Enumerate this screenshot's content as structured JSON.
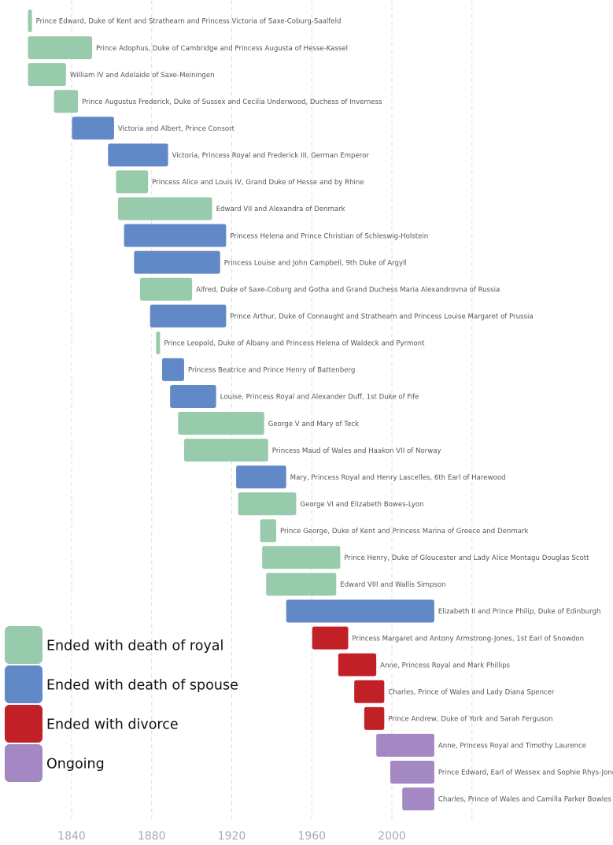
{
  "chart_data": {
    "type": "timeline",
    "title": "",
    "xlabel": "",
    "ylabel": "",
    "x_ticks": [
      1840,
      1880,
      1920,
      1960,
      2000
    ],
    "xlim": [
      1818,
      2040
    ],
    "grid": "vertical dashed",
    "legend_position": "left-bottom",
    "colors": {
      "death_royal": "#98CBAC",
      "death_spouse": "#6189C8",
      "divorce": "#C22027",
      "ongoing": "#A388C3"
    },
    "legend": [
      {
        "key": "death_royal",
        "label": "Ended with death of royal"
      },
      {
        "key": "death_spouse",
        "label": "Ended with death of spouse"
      },
      {
        "key": "divorce",
        "label": "Ended with divorce"
      },
      {
        "key": "ongoing",
        "label": "Ongoing"
      }
    ],
    "marriages": [
      {
        "label": "Prince Edward, Duke of Kent and Strathearn and Princess Victoria of Saxe-Coburg-Saalfeld",
        "start": 1818,
        "end": 1820,
        "outcome": "death_royal"
      },
      {
        "label": "Prince Adophus, Duke of Cambridge and Princess Augusta of Hesse-Kassel",
        "start": 1818,
        "end": 1850,
        "outcome": "death_royal"
      },
      {
        "label": "William IV and Adelaide of Saxe-Meiningen",
        "start": 1818,
        "end": 1837,
        "outcome": "death_royal"
      },
      {
        "label": "Prince Augustus Frederick, Duke of Sussex and Cecilia Underwood, Duchess of Inverness",
        "start": 1831,
        "end": 1843,
        "outcome": "death_royal"
      },
      {
        "label": "Victoria and Albert, Prince Consort",
        "start": 1840,
        "end": 1861,
        "outcome": "death_spouse"
      },
      {
        "label": "Victoria, Princess Royal and Frederick III, German Emperor",
        "start": 1858,
        "end": 1888,
        "outcome": "death_spouse"
      },
      {
        "label": "Princess Alice and Louis IV, Grand Duke of Hesse and by Rhine",
        "start": 1862,
        "end": 1878,
        "outcome": "death_royal"
      },
      {
        "label": "Edward VII and Alexandra of Denmark",
        "start": 1863,
        "end": 1910,
        "outcome": "death_royal"
      },
      {
        "label": "Princess Helena and Prince Christian of Schleswig-Holstein",
        "start": 1866,
        "end": 1917,
        "outcome": "death_spouse"
      },
      {
        "label": "Princess Louise and John Campbell, 9th Duke of Argyll",
        "start": 1871,
        "end": 1914,
        "outcome": "death_spouse"
      },
      {
        "label": "Alfred, Duke of Saxe-Coburg and Gotha and Grand Duchess Maria Alexandrovna of Russia",
        "start": 1874,
        "end": 1900,
        "outcome": "death_royal"
      },
      {
        "label": "Prince Arthur, Duke of Connaught and Strathearn and Princess Louise Margaret of Prussia",
        "start": 1879,
        "end": 1917,
        "outcome": "death_spouse"
      },
      {
        "label": "Prince Leopold, Duke of Albany and Princess Helena of Waldeck and Pyrmont",
        "start": 1882,
        "end": 1884,
        "outcome": "death_royal"
      },
      {
        "label": "Princess Beatrice and Prince Henry of Battenberg",
        "start": 1885,
        "end": 1896,
        "outcome": "death_spouse"
      },
      {
        "label": "Louise, Princess Royal and Alexander Duff, 1st Duke of Fife",
        "start": 1889,
        "end": 1912,
        "outcome": "death_spouse"
      },
      {
        "label": "George V and Mary of Teck",
        "start": 1893,
        "end": 1936,
        "outcome": "death_royal"
      },
      {
        "label": "Princess Maud of Wales and Haakon VII of Norway",
        "start": 1896,
        "end": 1938,
        "outcome": "death_royal"
      },
      {
        "label": "Mary, Princess Royal and Henry Lascelles, 6th Earl of Harewood",
        "start": 1922,
        "end": 1947,
        "outcome": "death_spouse"
      },
      {
        "label": "George VI and Elizabeth Bowes-Lyon",
        "start": 1923,
        "end": 1952,
        "outcome": "death_royal"
      },
      {
        "label": "Prince George, Duke of Kent and Princess Marina of Greece and Denmark",
        "start": 1934,
        "end": 1942,
        "outcome": "death_royal"
      },
      {
        "label": "Prince Henry, Duke of Gloucester and Lady Alice Montagu Douglas Scott",
        "start": 1935,
        "end": 1974,
        "outcome": "death_royal"
      },
      {
        "label": "Edward VIII and Wallis Simpson",
        "start": 1937,
        "end": 1972,
        "outcome": "death_royal"
      },
      {
        "label": "Elizabeth II and Prince Philip, Duke of Edinburgh",
        "start": 1947,
        "end": 2021,
        "outcome": "death_spouse"
      },
      {
        "label": "Princess Margaret and Antony Armstrong-Jones, 1st Earl of Snowdon",
        "start": 1960,
        "end": 1978,
        "outcome": "divorce"
      },
      {
        "label": "Anne, Princess Royal and Mark Phillips",
        "start": 1973,
        "end": 1992,
        "outcome": "divorce"
      },
      {
        "label": "Charles, Prince of Wales and Lady Diana Spencer",
        "start": 1981,
        "end": 1996,
        "outcome": "divorce"
      },
      {
        "label": "Prince Andrew, Duke of York and Sarah Ferguson",
        "start": 1986,
        "end": 1996,
        "outcome": "divorce"
      },
      {
        "label": "Anne, Princess Royal and Timothy Laurence",
        "start": 1992,
        "end": 2021,
        "outcome": "ongoing"
      },
      {
        "label": "Prince Edward, Earl of Wessex and Sophie Rhys-Jones",
        "start": 1999,
        "end": 2021,
        "outcome": "ongoing"
      },
      {
        "label": "Charles, Prince of Wales and Camilla Parker Bowles",
        "start": 2005,
        "end": 2021,
        "outcome": "ongoing"
      }
    ]
  }
}
